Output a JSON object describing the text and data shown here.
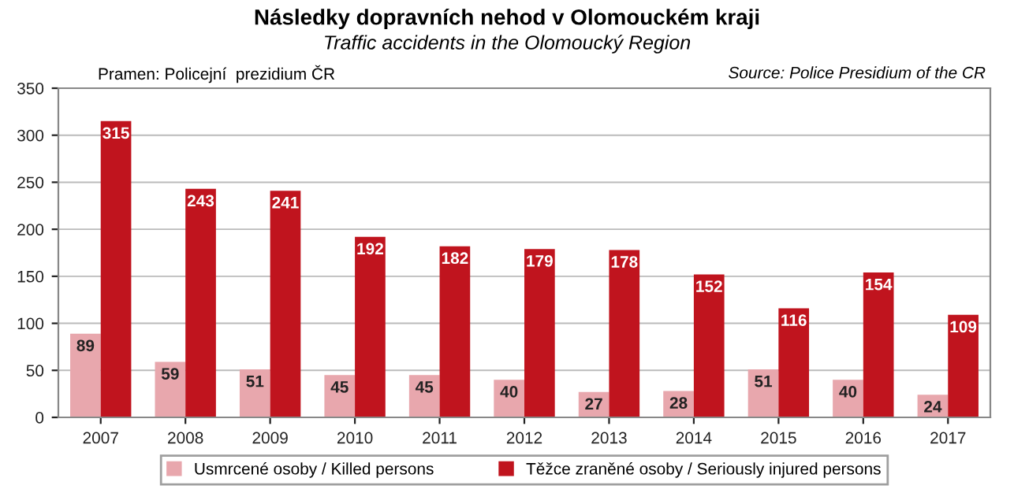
{
  "chart_data": {
    "type": "bar",
    "title": "Následky dopravních nehod v Olomouckém kraji",
    "subtitle": "Traffic accidents in the Olomoucký Region",
    "annotations": [
      "Pramen: Policejní  prezidium ČR",
      "Source: Police Presidium of the CR"
    ],
    "categories": [
      "2007",
      "2008",
      "2009",
      "2010",
      "2011",
      "2012",
      "2013",
      "2014",
      "2015",
      "2016",
      "2017"
    ],
    "series": [
      {
        "name": "Usmrcené osoby / Killed persons",
        "color": "#e8a7ad",
        "values": [
          89,
          59,
          51,
          45,
          45,
          40,
          27,
          28,
          51,
          40,
          24
        ]
      },
      {
        "name": "Těžce zraněné osoby / Seriously injured persons",
        "color": "#c0141e",
        "values": [
          315,
          243,
          241,
          192,
          182,
          179,
          178,
          152,
          116,
          154,
          109
        ]
      }
    ],
    "ylim": [
      0,
      350
    ],
    "yticks": [
      0,
      50,
      100,
      150,
      200,
      250,
      300,
      350
    ],
    "grid": "y",
    "legend": "bottom",
    "data_labels": true
  }
}
